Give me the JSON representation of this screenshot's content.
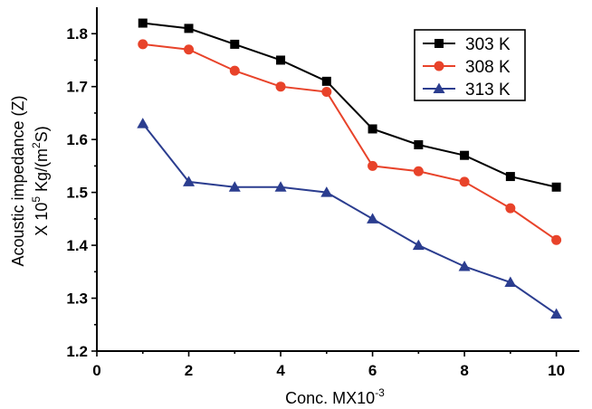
{
  "chart_data": {
    "type": "line",
    "xlabel": "Conc. MX10",
    "xlabel_superscript": "-3",
    "ylabel_line1": "Acoustic impedance (Z)",
    "ylabel_line2_parts": [
      "X 10",
      "5",
      " Kg/(m",
      "2",
      "S)"
    ],
    "xlim": [
      0,
      10.5
    ],
    "ylim": [
      1.2,
      1.85
    ],
    "xticks": [
      0,
      2,
      4,
      6,
      8,
      10
    ],
    "xtick_labels": [
      "0",
      "2",
      "4",
      "6",
      "8",
      "10"
    ],
    "yticks": [
      1.2,
      1.3,
      1.4,
      1.5,
      1.6,
      1.7,
      1.8
    ],
    "ytick_labels": [
      "1.2",
      "1.3",
      "1.4",
      "1.5",
      "1.6",
      "1.7",
      "1.8"
    ],
    "x": [
      1,
      2,
      3,
      4,
      5,
      6,
      7,
      8,
      9,
      10
    ],
    "legend_position": "top-right",
    "grid": false,
    "series": [
      {
        "name": "303 K",
        "color": "#000000",
        "marker": "square",
        "values": [
          1.82,
          1.81,
          1.78,
          1.75,
          1.71,
          1.62,
          1.59,
          1.57,
          1.53,
          1.51
        ]
      },
      {
        "name": "308 K",
        "color": "#e8432a",
        "marker": "circle",
        "values": [
          1.78,
          1.77,
          1.73,
          1.7,
          1.69,
          1.55,
          1.54,
          1.52,
          1.47,
          1.41
        ]
      },
      {
        "name": "313 K",
        "color": "#2b3d8f",
        "marker": "triangle",
        "values": [
          1.63,
          1.52,
          1.51,
          1.51,
          1.5,
          1.45,
          1.4,
          1.36,
          1.33,
          1.27
        ]
      }
    ]
  }
}
